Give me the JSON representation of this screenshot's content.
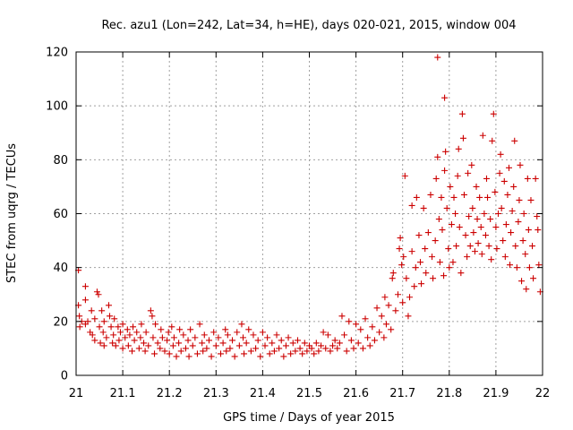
{
  "chart_data": {
    "type": "scatter",
    "title": "Rec. azu1 (Lon=242, Lat=34, h=HE), days 020-021, 2015, window 004",
    "xlabel": "GPS time / Days of year 2015",
    "ylabel": "STEC from uqrg / TECUs",
    "xlim": [
      21,
      22
    ],
    "ylim": [
      0,
      120
    ],
    "x_ticks": [
      "21",
      "21.1",
      "21.2",
      "21.3",
      "21.4",
      "21.5",
      "21.6",
      "21.7",
      "21.8",
      "21.9",
      "22"
    ],
    "y_ticks": [
      "0",
      "20",
      "40",
      "60",
      "80",
      "100",
      "120"
    ],
    "grid": true,
    "marker": "plus",
    "color": "#cc0000",
    "series": [
      {
        "points": [
          [
            21.005,
            39
          ],
          [
            21.005,
            26
          ],
          [
            21.007,
            22
          ],
          [
            21.008,
            18
          ],
          [
            21.012,
            20
          ],
          [
            21.02,
            33
          ],
          [
            21.02,
            28
          ],
          [
            21.02,
            19
          ],
          [
            21.025,
            20
          ],
          [
            21.03,
            16
          ],
          [
            21.033,
            24
          ],
          [
            21.035,
            15
          ],
          [
            21.04,
            21
          ],
          [
            21.04,
            13
          ],
          [
            21.045,
            31
          ],
          [
            21.048,
            30
          ],
          [
            21.05,
            18
          ],
          [
            21.052,
            12
          ],
          [
            21.055,
            24
          ],
          [
            21.058,
            16
          ],
          [
            21.06,
            20
          ],
          [
            21.06,
            11
          ],
          [
            21.065,
            14
          ],
          [
            21.07,
            26
          ],
          [
            21.072,
            22
          ],
          [
            21.075,
            18
          ],
          [
            21.078,
            12
          ],
          [
            21.08,
            15
          ],
          [
            21.082,
            21
          ],
          [
            21.085,
            11
          ],
          [
            21.09,
            18
          ],
          [
            21.092,
            13
          ],
          [
            21.095,
            16
          ],
          [
            21.1,
            10
          ],
          [
            21.1,
            19
          ],
          [
            21.105,
            14
          ],
          [
            21.11,
            17
          ],
          [
            21.112,
            11
          ],
          [
            21.115,
            15
          ],
          [
            21.12,
            9
          ],
          [
            21.122,
            18
          ],
          [
            21.125,
            13
          ],
          [
            21.13,
            16
          ],
          [
            21.135,
            10
          ],
          [
            21.138,
            14
          ],
          [
            21.14,
            19
          ],
          [
            21.145,
            12
          ],
          [
            21.148,
            9
          ],
          [
            21.15,
            16
          ],
          [
            21.155,
            11
          ],
          [
            21.16,
            24
          ],
          [
            21.163,
            22
          ],
          [
            21.165,
            14
          ],
          [
            21.168,
            8
          ],
          [
            21.17,
            19
          ],
          [
            21.175,
            12
          ],
          [
            21.18,
            10
          ],
          [
            21.182,
            17
          ],
          [
            21.185,
            14
          ],
          [
            21.19,
            9
          ],
          [
            21.195,
            13
          ],
          [
            21.198,
            16
          ],
          [
            21.2,
            8
          ],
          [
            21.205,
            18
          ],
          [
            21.208,
            11
          ],
          [
            21.21,
            14
          ],
          [
            21.215,
            7
          ],
          [
            21.22,
            12
          ],
          [
            21.222,
            17
          ],
          [
            21.225,
            9
          ],
          [
            21.23,
            15
          ],
          [
            21.235,
            10
          ],
          [
            21.24,
            13
          ],
          [
            21.242,
            7
          ],
          [
            21.245,
            17
          ],
          [
            21.25,
            11
          ],
          [
            21.255,
            14
          ],
          [
            21.26,
            8
          ],
          [
            21.265,
            19
          ],
          [
            21.27,
            12
          ],
          [
            21.272,
            9
          ],
          [
            21.275,
            15
          ],
          [
            21.28,
            10
          ],
          [
            21.285,
            13
          ],
          [
            21.29,
            7
          ],
          [
            21.295,
            16
          ],
          [
            21.3,
            11
          ],
          [
            21.305,
            14
          ],
          [
            21.31,
            8
          ],
          [
            21.315,
            12
          ],
          [
            21.32,
            17
          ],
          [
            21.322,
            9
          ],
          [
            21.325,
            15
          ],
          [
            21.33,
            10
          ],
          [
            21.335,
            13
          ],
          [
            21.34,
            7
          ],
          [
            21.345,
            16
          ],
          [
            21.35,
            11
          ],
          [
            21.355,
            19
          ],
          [
            21.358,
            14
          ],
          [
            21.36,
            8
          ],
          [
            21.365,
            12
          ],
          [
            21.37,
            17
          ],
          [
            21.375,
            9
          ],
          [
            21.38,
            15
          ],
          [
            21.385,
            10
          ],
          [
            21.39,
            13
          ],
          [
            21.395,
            7
          ],
          [
            21.4,
            16
          ],
          [
            21.405,
            11
          ],
          [
            21.41,
            14
          ],
          [
            21.415,
            8
          ],
          [
            21.42,
            12
          ],
          [
            21.425,
            9
          ],
          [
            21.43,
            15
          ],
          [
            21.435,
            10
          ],
          [
            21.44,
            13
          ],
          [
            21.445,
            7
          ],
          [
            21.45,
            11
          ],
          [
            21.455,
            14
          ],
          [
            21.46,
            8
          ],
          [
            21.465,
            12
          ],
          [
            21.47,
            9
          ],
          [
            21.475,
            13
          ],
          [
            21.48,
            10
          ],
          [
            21.485,
            8
          ],
          [
            21.49,
            12
          ],
          [
            21.495,
            9
          ],
          [
            21.5,
            11
          ],
          [
            21.505,
            10
          ],
          [
            21.51,
            8
          ],
          [
            21.515,
            12
          ],
          [
            21.52,
            9
          ],
          [
            21.525,
            11
          ],
          [
            21.53,
            16
          ],
          [
            21.535,
            10
          ],
          [
            21.54,
            15
          ],
          [
            21.545,
            9
          ],
          [
            21.55,
            11
          ],
          [
            21.555,
            13
          ],
          [
            21.56,
            10
          ],
          [
            21.565,
            12
          ],
          [
            21.57,
            22
          ],
          [
            21.575,
            15
          ],
          [
            21.58,
            9
          ],
          [
            21.585,
            20
          ],
          [
            21.59,
            13
          ],
          [
            21.595,
            10
          ],
          [
            21.6,
            19
          ],
          [
            21.605,
            12
          ],
          [
            21.61,
            17
          ],
          [
            21.615,
            10
          ],
          [
            21.62,
            21
          ],
          [
            21.625,
            14
          ],
          [
            21.63,
            11
          ],
          [
            21.635,
            18
          ],
          [
            21.64,
            13
          ],
          [
            21.645,
            25
          ],
          [
            21.65,
            16
          ],
          [
            21.655,
            22
          ],
          [
            21.66,
            14
          ],
          [
            21.662,
            29
          ],
          [
            21.665,
            19
          ],
          [
            21.67,
            26
          ],
          [
            21.675,
            17
          ],
          [
            21.678,
            36
          ],
          [
            21.68,
            38
          ],
          [
            21.685,
            24
          ],
          [
            21.69,
            30
          ],
          [
            21.693,
            47
          ],
          [
            21.695,
            51
          ],
          [
            21.698,
            41
          ],
          [
            21.7,
            27
          ],
          [
            21.702,
            44
          ],
          [
            21.705,
            74
          ],
          [
            21.708,
            36
          ],
          [
            21.712,
            22
          ],
          [
            21.715,
            29
          ],
          [
            21.72,
            63
          ],
          [
            21.72,
            46
          ],
          [
            21.725,
            33
          ],
          [
            21.728,
            40
          ],
          [
            21.73,
            66
          ],
          [
            21.735,
            52
          ],
          [
            21.738,
            42
          ],
          [
            21.74,
            34
          ],
          [
            21.745,
            62
          ],
          [
            21.748,
            47
          ],
          [
            21.75,
            38
          ],
          [
            21.755,
            53
          ],
          [
            21.76,
            67
          ],
          [
            21.763,
            44
          ],
          [
            21.765,
            36
          ],
          [
            21.77,
            50
          ],
          [
            21.772,
            73
          ],
          [
            21.775,
            118
          ],
          [
            21.775,
            81
          ],
          [
            21.778,
            58
          ],
          [
            21.78,
            42
          ],
          [
            21.783,
            66
          ],
          [
            21.785,
            54
          ],
          [
            21.788,
            37
          ],
          [
            21.79,
            103
          ],
          [
            21.79,
            76
          ],
          [
            21.792,
            83
          ],
          [
            21.795,
            62
          ],
          [
            21.798,
            47
          ],
          [
            21.8,
            40
          ],
          [
            21.802,
            70
          ],
          [
            21.805,
            56
          ],
          [
            21.808,
            42
          ],
          [
            21.81,
            66
          ],
          [
            21.813,
            60
          ],
          [
            21.815,
            48
          ],
          [
            21.818,
            74
          ],
          [
            21.82,
            84
          ],
          [
            21.822,
            55
          ],
          [
            21.825,
            38
          ],
          [
            21.828,
            97
          ],
          [
            21.83,
            88
          ],
          [
            21.832,
            67
          ],
          [
            21.835,
            52
          ],
          [
            21.838,
            44
          ],
          [
            21.84,
            75
          ],
          [
            21.842,
            59
          ],
          [
            21.845,
            48
          ],
          [
            21.848,
            78
          ],
          [
            21.85,
            62
          ],
          [
            21.852,
            53
          ],
          [
            21.855,
            46
          ],
          [
            21.858,
            70
          ],
          [
            21.86,
            58
          ],
          [
            21.862,
            49
          ],
          [
            21.865,
            66
          ],
          [
            21.868,
            55
          ],
          [
            21.87,
            45
          ],
          [
            21.872,
            89
          ],
          [
            21.875,
            60
          ],
          [
            21.878,
            52
          ],
          [
            21.88,
            73
          ],
          [
            21.882,
            66
          ],
          [
            21.885,
            48
          ],
          [
            21.888,
            58
          ],
          [
            21.89,
            43
          ],
          [
            21.892,
            87
          ],
          [
            21.895,
            97
          ],
          [
            21.898,
            68
          ],
          [
            21.9,
            55
          ],
          [
            21.902,
            47
          ],
          [
            21.905,
            60
          ],
          [
            21.908,
            75
          ],
          [
            21.91,
            82
          ],
          [
            21.912,
            62
          ],
          [
            21.915,
            50
          ],
          [
            21.918,
            72
          ],
          [
            21.92,
            44
          ],
          [
            21.922,
            56
          ],
          [
            21.925,
            67
          ],
          [
            21.928,
            77
          ],
          [
            21.93,
            41
          ],
          [
            21.932,
            53
          ],
          [
            21.935,
            61
          ],
          [
            21.938,
            70
          ],
          [
            21.94,
            87
          ],
          [
            21.942,
            48
          ],
          [
            21.945,
            40
          ],
          [
            21.948,
            57
          ],
          [
            21.95,
            65
          ],
          [
            21.952,
            78
          ],
          [
            21.955,
            35
          ],
          [
            21.958,
            50
          ],
          [
            21.96,
            60
          ],
          [
            21.963,
            45
          ],
          [
            21.965,
            32
          ],
          [
            21.968,
            73
          ],
          [
            21.97,
            54
          ],
          [
            21.972,
            40
          ],
          [
            21.975,
            65
          ],
          [
            21.978,
            48
          ],
          [
            21.98,
            36
          ],
          [
            21.985,
            73
          ],
          [
            21.988,
            59
          ],
          [
            21.99,
            54
          ],
          [
            21.992,
            41
          ],
          [
            21.995,
            31
          ]
        ]
      }
    ]
  }
}
